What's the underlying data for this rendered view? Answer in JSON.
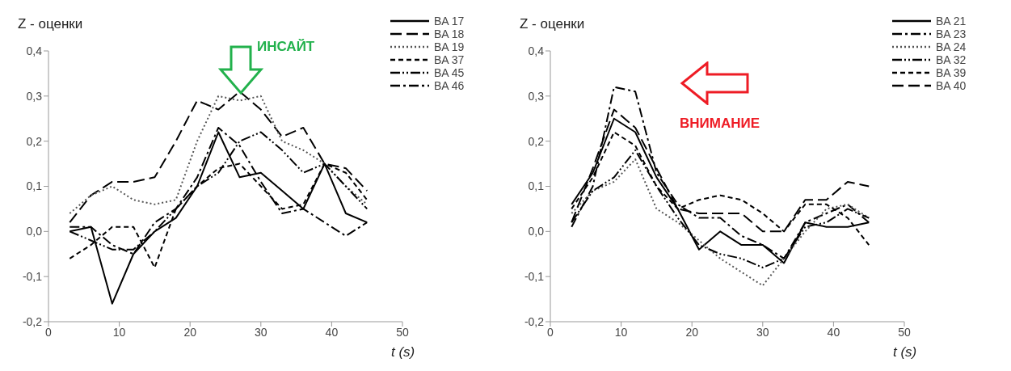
{
  "chart_data": [
    {
      "type": "line",
      "ylabel": "Z - оценки",
      "xlabel": "t (s)",
      "annotations": [
        "ИНСАЙТ"
      ],
      "legend": "top right",
      "grid": false,
      "marker": "none",
      "x": [
        3,
        6,
        9,
        12,
        15,
        18,
        21,
        24,
        27,
        30,
        33,
        36,
        39,
        42,
        45
      ],
      "xlim": [
        0,
        50
      ],
      "xticks": [
        0,
        10,
        20,
        30,
        40,
        50
      ],
      "ylim": [
        -0.2,
        0.4
      ],
      "yticks": [
        {
          "value": -0.2,
          "label": "-0,2"
        },
        {
          "value": -0.1,
          "label": "-0,1"
        },
        {
          "value": 0,
          "label": "0,0"
        },
        {
          "value": 0.1,
          "label": "0,1"
        },
        {
          "value": 0.2,
          "label": "0,2"
        },
        {
          "value": 0.3,
          "label": "0,3"
        },
        {
          "value": 0.4,
          "label": "0,4"
        }
      ],
      "series": [
        {
          "name": "BA 17",
          "color": "#000000",
          "line_style": "solid",
          "values": [
            0.0,
            0.01,
            -0.16,
            -0.05,
            0.0,
            0.03,
            0.1,
            0.22,
            0.12,
            0.13,
            0.09,
            0.05,
            0.15,
            0.04,
            0.02
          ]
        },
        {
          "name": "BA 18",
          "color": "#000000",
          "line_style": "dashed",
          "values": [
            0.02,
            0.08,
            0.11,
            0.11,
            0.12,
            0.2,
            0.29,
            0.27,
            0.31,
            0.27,
            0.21,
            0.23,
            0.15,
            0.14,
            0.09
          ]
        },
        {
          "name": "BA 19",
          "color": "#555555",
          "line_style": "dotted",
          "values": [
            0.04,
            0.08,
            0.1,
            0.07,
            0.06,
            0.07,
            0.2,
            0.3,
            0.29,
            0.3,
            0.2,
            0.18,
            0.15,
            0.1,
            0.06
          ]
        },
        {
          "name": "BA 37",
          "color": "#000000",
          "line_style": "short-dashed",
          "values": [
            -0.06,
            -0.03,
            0.01,
            0.01,
            -0.08,
            0.05,
            0.1,
            0.14,
            0.15,
            0.1,
            0.05,
            0.06,
            0.15,
            0.13,
            0.07
          ]
        },
        {
          "name": "BA 45",
          "color": "#000000",
          "line_style": "dash-dot-dot",
          "values": [
            0.0,
            -0.02,
            -0.04,
            -0.04,
            0.0,
            0.05,
            0.1,
            0.13,
            0.2,
            0.22,
            0.18,
            0.13,
            0.15,
            0.1,
            0.05
          ]
        },
        {
          "name": "BA 46",
          "color": "#000000",
          "line_style": "dash-dot",
          "values": [
            0.01,
            0.01,
            -0.03,
            -0.05,
            0.02,
            0.05,
            0.12,
            0.23,
            0.19,
            0.11,
            0.04,
            0.05,
            0.02,
            -0.01,
            0.02
          ]
        }
      ]
    },
    {
      "type": "line",
      "ylabel": "Z - оценки",
      "xlabel": "t (s)",
      "annotations": [
        "ВНИМАНИЕ"
      ],
      "legend": "top right",
      "grid": false,
      "marker": "none",
      "x": [
        3,
        6,
        9,
        12,
        15,
        18,
        21,
        24,
        27,
        30,
        33,
        36,
        39,
        42,
        45
      ],
      "xlim": [
        0,
        50
      ],
      "xticks": [
        0,
        10,
        20,
        30,
        40,
        50
      ],
      "ylim": [
        -0.2,
        0.4
      ],
      "yticks": [
        {
          "value": -0.2,
          "label": "-0,2"
        },
        {
          "value": -0.1,
          "label": "-0,1"
        },
        {
          "value": 0,
          "label": "0,0"
        },
        {
          "value": 0.1,
          "label": "0,1"
        },
        {
          "value": 0.2,
          "label": "0,2"
        },
        {
          "value": 0.3,
          "label": "0,3"
        },
        {
          "value": 0.4,
          "label": "0,4"
        }
      ],
      "series": [
        {
          "name": "BA 21",
          "color": "#000000",
          "line_style": "solid",
          "values": [
            0.06,
            0.13,
            0.25,
            0.22,
            0.12,
            0.05,
            -0.04,
            0.0,
            -0.03,
            -0.03,
            -0.07,
            0.02,
            0.01,
            0.01,
            0.02
          ]
        },
        {
          "name": "BA 23",
          "color": "#000000",
          "line_style": "dash-dot",
          "values": [
            0.01,
            0.1,
            0.32,
            0.31,
            0.13,
            0.06,
            0.03,
            0.03,
            -0.01,
            -0.03,
            -0.06,
            0.02,
            0.04,
            0.06,
            0.02
          ]
        },
        {
          "name": "BA 24",
          "color": "#555555",
          "line_style": "dotted",
          "values": [
            0.04,
            0.09,
            0.11,
            0.16,
            0.05,
            0.02,
            -0.02,
            -0.06,
            -0.09,
            -0.12,
            -0.06,
            0.0,
            0.05,
            0.06,
            0.03
          ]
        },
        {
          "name": "BA 32",
          "color": "#000000",
          "line_style": "dash-dot-dot",
          "values": [
            0.02,
            0.09,
            0.12,
            0.18,
            0.1,
            0.03,
            -0.03,
            -0.05,
            -0.06,
            -0.08,
            -0.06,
            0.01,
            0.02,
            0.05,
            0.03
          ]
        },
        {
          "name": "BA 39",
          "color": "#000000",
          "line_style": "short-dashed",
          "values": [
            0.05,
            0.12,
            0.22,
            0.19,
            0.1,
            0.05,
            0.07,
            0.08,
            0.07,
            0.04,
            0.0,
            0.06,
            0.06,
            0.03,
            -0.03
          ]
        },
        {
          "name": "BA 40",
          "color": "#000000",
          "line_style": "dashed",
          "values": [
            0.02,
            0.14,
            0.27,
            0.23,
            0.14,
            0.05,
            0.04,
            0.04,
            0.04,
            0.0,
            0.0,
            0.07,
            0.07,
            0.11,
            0.1
          ]
        }
      ]
    }
  ]
}
